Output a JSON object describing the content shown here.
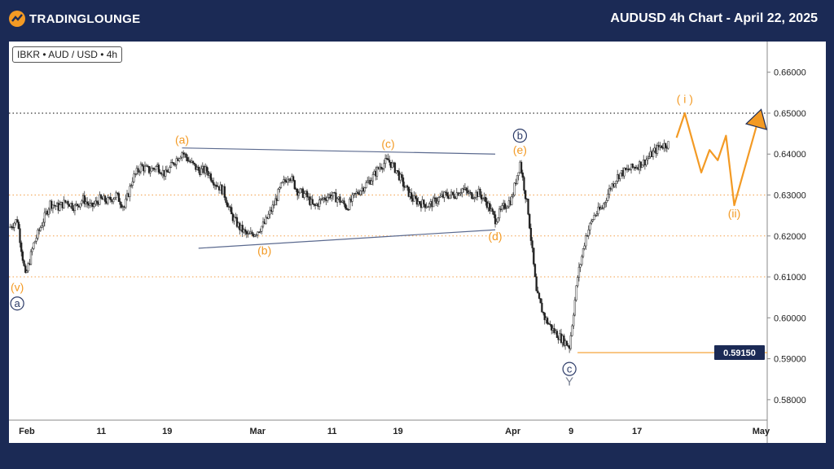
{
  "header": {
    "logo_text": "TRADINGLOUNGE",
    "title": "AUDUSD 4h Chart - April 22, 2025"
  },
  "symbol_badge": "IBKR • AUD / USD • 4h",
  "colors": {
    "background": "#1b2a55",
    "orange": "#f39a24",
    "navy": "#2b3a67",
    "candle": "#222222",
    "dotted_orange": "#f3a04a"
  },
  "chart_data": {
    "type": "candlestick",
    "ylim": [
      0.575,
      0.6675
    ],
    "y_ticks": [
      "0.66000",
      "0.65000",
      "0.64000",
      "0.63000",
      "0.62000",
      "0.61000",
      "0.60000",
      "0.59000",
      "0.58000"
    ],
    "y_tick_values": [
      0.66,
      0.65,
      0.64,
      0.63,
      0.62,
      0.61,
      0.6,
      0.59,
      0.58
    ],
    "x_ticks": [
      "Feb",
      "11",
      "19",
      "Mar",
      "11",
      "19",
      "Apr",
      "9",
      "17",
      "May"
    ],
    "x_tick_dates": [
      "2025-02-01",
      "2025-02-11",
      "2025-02-19",
      "2025-03-01",
      "2025-03-11",
      "2025-03-19",
      "2025-04-01",
      "2025-04-09",
      "2025-04-17",
      "2025-05-01"
    ],
    "x_range": [
      "2025-01-31",
      "2025-05-03"
    ],
    "horizontal_lines": [
      {
        "value": 0.65,
        "style": "dotted",
        "color": "#000000"
      },
      {
        "value": 0.63,
        "style": "dotted",
        "color": "#f3a04a"
      },
      {
        "value": 0.62,
        "style": "dotted",
        "color": "#f3a04a"
      },
      {
        "value": 0.61,
        "style": "dotted",
        "color": "#f3a04a"
      },
      {
        "value": 0.5915,
        "style": "solid",
        "color": "#f39a24",
        "label": "0.59150"
      }
    ],
    "price_path": [
      [
        "2025-01-31",
        0.622
      ],
      [
        "2025-02-01",
        0.624
      ],
      [
        "2025-02-02",
        0.61
      ],
      [
        "2025-02-03",
        0.618
      ],
      [
        "2025-02-04",
        0.623
      ],
      [
        "2025-02-05",
        0.628
      ],
      [
        "2025-02-06",
        0.627
      ],
      [
        "2025-02-07",
        0.6285
      ],
      [
        "2025-02-08",
        0.627
      ],
      [
        "2025-02-09",
        0.629
      ],
      [
        "2025-02-10",
        0.627
      ],
      [
        "2025-02-11",
        0.629
      ],
      [
        "2025-02-12",
        0.6285
      ],
      [
        "2025-02-13",
        0.63
      ],
      [
        "2025-02-14",
        0.627
      ],
      [
        "2025-02-15",
        0.634
      ],
      [
        "2025-02-16",
        0.637
      ],
      [
        "2025-02-17",
        0.636
      ],
      [
        "2025-02-18",
        0.637
      ],
      [
        "2025-02-19",
        0.635
      ],
      [
        "2025-02-20",
        0.638
      ],
      [
        "2025-02-21",
        0.6405
      ],
      [
        "2025-02-22",
        0.638
      ],
      [
        "2025-02-23",
        0.636
      ],
      [
        "2025-02-24",
        0.636
      ],
      [
        "2025-02-25",
        0.633
      ],
      [
        "2025-02-26",
        0.631
      ],
      [
        "2025-02-27",
        0.625
      ],
      [
        "2025-02-28",
        0.622
      ],
      [
        "2025-03-01",
        0.62
      ],
      [
        "2025-03-02",
        0.621
      ],
      [
        "2025-03-03",
        0.623
      ],
      [
        "2025-03-04",
        0.627
      ],
      [
        "2025-03-05",
        0.632
      ],
      [
        "2025-03-06",
        0.635
      ],
      [
        "2025-03-07",
        0.631
      ],
      [
        "2025-03-08",
        0.63
      ],
      [
        "2025-03-09",
        0.627
      ],
      [
        "2025-03-10",
        0.629
      ],
      [
        "2025-03-11",
        0.63
      ],
      [
        "2025-03-12",
        0.629
      ],
      [
        "2025-03-13",
        0.627
      ],
      [
        "2025-03-14",
        0.63
      ],
      [
        "2025-03-15",
        0.632
      ],
      [
        "2025-03-16",
        0.634
      ],
      [
        "2025-03-17",
        0.637
      ],
      [
        "2025-03-18",
        0.6385
      ],
      [
        "2025-03-19",
        0.636
      ],
      [
        "2025-03-20",
        0.632
      ],
      [
        "2025-03-21",
        0.629
      ],
      [
        "2025-03-22",
        0.628
      ],
      [
        "2025-03-23",
        0.6275
      ],
      [
        "2025-03-24",
        0.629
      ],
      [
        "2025-03-25",
        0.63
      ],
      [
        "2025-03-26",
        0.63
      ],
      [
        "2025-03-27",
        0.6315
      ],
      [
        "2025-03-28",
        0.63
      ],
      [
        "2025-03-29",
        0.6305
      ],
      [
        "2025-03-30",
        0.628
      ],
      [
        "2025-03-31",
        0.624
      ],
      [
        "2025-04-01",
        0.627
      ],
      [
        "2025-04-02",
        0.629
      ],
      [
        "2025-04-03",
        0.638
      ],
      [
        "2025-04-04",
        0.626
      ],
      [
        "2025-04-05",
        0.606
      ],
      [
        "2025-04-06",
        0.6
      ],
      [
        "2025-04-07",
        0.597
      ],
      [
        "2025-04-08",
        0.595
      ],
      [
        "2025-04-09",
        0.593
      ],
      [
        "2025-04-10",
        0.61
      ],
      [
        "2025-04-11",
        0.62
      ],
      [
        "2025-04-12",
        0.625
      ],
      [
        "2025-04-13",
        0.627
      ],
      [
        "2025-04-14",
        0.632
      ],
      [
        "2025-04-15",
        0.635
      ],
      [
        "2025-04-16",
        0.636
      ],
      [
        "2025-04-17",
        0.637
      ],
      [
        "2025-04-18",
        0.638
      ],
      [
        "2025-04-19",
        0.64
      ],
      [
        "2025-04-20",
        0.642
      ],
      [
        "2025-04-21",
        0.6425
      ]
    ],
    "projection": [
      [
        "2025-04-22",
        0.644
      ],
      [
        "2025-04-23",
        0.65
      ],
      [
        "2025-04-25",
        0.6355
      ],
      [
        "2025-04-26",
        0.641
      ],
      [
        "2025-04-27",
        0.6385
      ],
      [
        "2025-04-28",
        0.6445
      ],
      [
        "2025-04-29",
        0.6275
      ],
      [
        "2025-05-02",
        0.649
      ]
    ],
    "trendlines": [
      {
        "from": [
          "2025-02-21",
          0.6415
        ],
        "to": [
          "2025-03-31",
          0.64
        ]
      },
      {
        "from": [
          "2025-02-23",
          0.617
        ],
        "to": [
          "2025-03-31",
          0.6215
        ]
      }
    ],
    "labels": [
      {
        "text": "(a)",
        "date": "2025-02-21",
        "value": 0.6425,
        "color": "orange"
      },
      {
        "text": "(b)",
        "date": "2025-03-03",
        "value": 0.6155,
        "color": "orange"
      },
      {
        "text": "(c)",
        "date": "2025-03-18",
        "value": 0.6415,
        "color": "orange"
      },
      {
        "text": "(d)",
        "date": "2025-03-31",
        "value": 0.619,
        "color": "orange"
      },
      {
        "text": "(e)",
        "date": "2025-04-03",
        "value": 0.64,
        "color": "orange"
      },
      {
        "text": "(v)",
        "date": "2025-02-01",
        "value": 0.6065,
        "color": "orange"
      },
      {
        "text": "( i )",
        "date": "2025-04-23",
        "value": 0.6525,
        "color": "orange"
      },
      {
        "text": "(ii)",
        "date": "2025-04-29",
        "value": 0.6245,
        "color": "orange"
      },
      {
        "text": "Y",
        "date": "2025-04-09",
        "value": 0.5835,
        "color": "gray"
      }
    ],
    "circle_labels": [
      {
        "text": "a",
        "date": "2025-02-01",
        "value": 0.6035
      },
      {
        "text": "b",
        "date": "2025-04-03",
        "value": 0.6445
      },
      {
        "text": "c",
        "date": "2025-04-09",
        "value": 0.5875
      }
    ]
  }
}
